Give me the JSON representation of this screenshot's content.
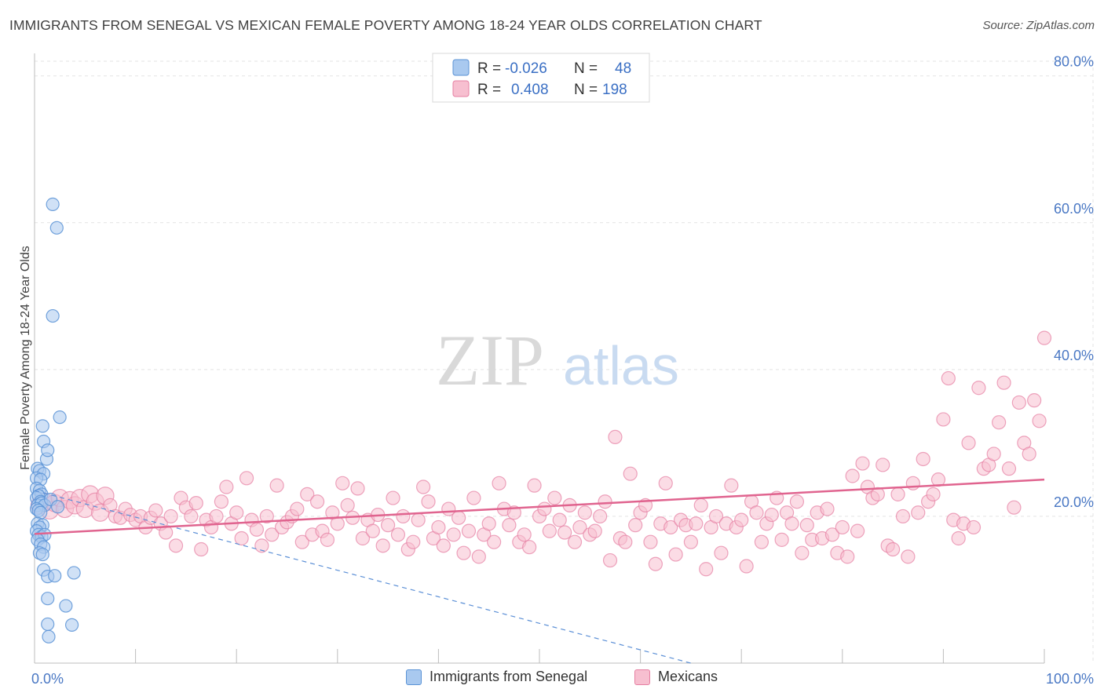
{
  "title": "IMMIGRANTS FROM SENEGAL VS MEXICAN FEMALE POVERTY AMONG 18-24 YEAR OLDS CORRELATION CHART",
  "source": "Source: ZipAtlas.com",
  "watermark": {
    "zip": "ZIP",
    "atlas": "atlas"
  },
  "colors": {
    "senegal_fill": "#a9c9ef",
    "senegal_stroke": "#5b93d6",
    "mexican_fill": "#f7bfd0",
    "mexican_stroke": "#e67fa2",
    "mexican_trend": "#e0648f",
    "senegal_trend": "#5b8fd6",
    "axis_text": "#4a78c4",
    "grid": "#e3e3e3"
  },
  "legend": {
    "row1": {
      "r_label": "R = ",
      "r_value": "-0.026",
      "n_label": "N = ",
      "n_value": "48"
    },
    "row2": {
      "r_label": "R = ",
      "r_value": "0.408",
      "n_label": "N = ",
      "n_value": "198"
    }
  },
  "chart_data": {
    "type": "scatter",
    "title": "IMMIGRANTS FROM SENEGAL VS MEXICAN FEMALE POVERTY AMONG 18-24 YEAR OLDS CORRELATION CHART",
    "xlabel": "",
    "ylabel": "Female Poverty Among 18-24 Year Olds",
    "xlim": [
      0,
      100
    ],
    "ylim": [
      0,
      82
    ],
    "x_tick_labels": [
      "0.0%",
      "100.0%"
    ],
    "y_ticks": [
      20,
      40,
      60,
      80
    ],
    "y_tick_labels": [
      "20.0%",
      "40.0%",
      "60.0%",
      "80.0%"
    ],
    "grid": true,
    "legend_position": "top-center",
    "series": [
      {
        "name": "Immigrants from Senegal",
        "R": -0.026,
        "N": 48,
        "trend": {
          "x0": 0,
          "y0": 23.5,
          "x1": 65,
          "y1": 0,
          "style": "dashed"
        },
        "points": [
          [
            1.8,
            62.5
          ],
          [
            2.2,
            59.3
          ],
          [
            1.8,
            47.3
          ],
          [
            2.5,
            33.5
          ],
          [
            0.8,
            32.3
          ],
          [
            0.9,
            30.2
          ],
          [
            1.2,
            27.8
          ],
          [
            1.3,
            29.0
          ],
          [
            0.3,
            26.5
          ],
          [
            0.5,
            26.2
          ],
          [
            0.9,
            25.8
          ],
          [
            0.2,
            25.2
          ],
          [
            0.6,
            25.0
          ],
          [
            0.2,
            23.8
          ],
          [
            0.5,
            23.5
          ],
          [
            0.7,
            23.0
          ],
          [
            0.2,
            22.5
          ],
          [
            0.4,
            22.8
          ],
          [
            0.6,
            22.0
          ],
          [
            0.3,
            21.5
          ],
          [
            0.7,
            21.8
          ],
          [
            1.0,
            21.5
          ],
          [
            0.2,
            21.0
          ],
          [
            0.4,
            20.8
          ],
          [
            0.6,
            20.5
          ],
          [
            0.3,
            19.0
          ],
          [
            0.8,
            18.8
          ],
          [
            0.5,
            18.5
          ],
          [
            0.2,
            18.0
          ],
          [
            0.4,
            17.5
          ],
          [
            0.7,
            17.2
          ],
          [
            1.0,
            17.5
          ],
          [
            0.3,
            16.8
          ],
          [
            0.6,
            16.2
          ],
          [
            0.9,
            15.8
          ],
          [
            0.5,
            15.0
          ],
          [
            0.8,
            14.8
          ],
          [
            0.9,
            12.7
          ],
          [
            1.3,
            11.8
          ],
          [
            2.0,
            11.9
          ],
          [
            3.9,
            12.3
          ],
          [
            1.3,
            8.8
          ],
          [
            3.1,
            7.8
          ],
          [
            1.3,
            5.3
          ],
          [
            3.7,
            5.2
          ],
          [
            1.4,
            3.6
          ],
          [
            1.6,
            22.3
          ],
          [
            2.3,
            21.3
          ]
        ]
      },
      {
        "name": "Mexicans",
        "R": 0.408,
        "N": 198,
        "trend": {
          "x0": 0,
          "y0": 17.6,
          "x1": 100,
          "y1": 25.0,
          "style": "solid"
        },
        "points": [
          [
            0.5,
            21.5
          ],
          [
            1.0,
            22.0
          ],
          [
            1.5,
            20.8
          ],
          [
            2.0,
            21.8
          ],
          [
            2.5,
            22.5
          ],
          [
            3.0,
            21.0
          ],
          [
            3.5,
            22.2
          ],
          [
            4.0,
            21.5
          ],
          [
            4.5,
            22.5
          ],
          [
            5.0,
            21.0
          ],
          [
            5.5,
            23.0
          ],
          [
            6.0,
            22.0
          ],
          [
            6.5,
            20.5
          ],
          [
            7.0,
            22.8
          ],
          [
            7.5,
            21.5
          ],
          [
            8.0,
            20.0
          ],
          [
            8.5,
            19.8
          ],
          [
            9.0,
            21.0
          ],
          [
            9.5,
            20.2
          ],
          [
            10.0,
            19.5
          ],
          [
            10.5,
            20.0
          ],
          [
            11.0,
            18.5
          ],
          [
            11.5,
            19.8
          ],
          [
            12.0,
            20.8
          ],
          [
            12.5,
            19.0
          ],
          [
            13.0,
            17.8
          ],
          [
            13.5,
            20.0
          ],
          [
            14.0,
            16.0
          ],
          [
            14.5,
            22.5
          ],
          [
            15.0,
            21.2
          ],
          [
            15.5,
            20.0
          ],
          [
            16.0,
            21.8
          ],
          [
            16.5,
            15.5
          ],
          [
            17.0,
            19.5
          ],
          [
            17.5,
            18.5
          ],
          [
            18.0,
            20.0
          ],
          [
            18.5,
            22.0
          ],
          [
            19.0,
            24.0
          ],
          [
            19.5,
            19.0
          ],
          [
            20.0,
            20.5
          ],
          [
            20.5,
            17.0
          ],
          [
            21.0,
            25.2
          ],
          [
            21.5,
            19.5
          ],
          [
            22.0,
            18.2
          ],
          [
            22.5,
            16.0
          ],
          [
            23.0,
            20.0
          ],
          [
            23.5,
            17.5
          ],
          [
            24.0,
            24.2
          ],
          [
            24.5,
            18.5
          ],
          [
            25.0,
            19.2
          ],
          [
            25.5,
            20.0
          ],
          [
            26.0,
            21.0
          ],
          [
            26.5,
            16.5
          ],
          [
            27.0,
            23.0
          ],
          [
            27.5,
            17.5
          ],
          [
            28.0,
            22.0
          ],
          [
            28.5,
            18.0
          ],
          [
            29.0,
            16.8
          ],
          [
            29.5,
            20.5
          ],
          [
            30.0,
            19.0
          ],
          [
            30.5,
            24.5
          ],
          [
            31.0,
            21.5
          ],
          [
            31.5,
            19.8
          ],
          [
            32.0,
            23.8
          ],
          [
            32.5,
            17.0
          ],
          [
            33.0,
            19.5
          ],
          [
            33.5,
            18.0
          ],
          [
            34.0,
            20.2
          ],
          [
            34.5,
            16.0
          ],
          [
            35.0,
            18.8
          ],
          [
            35.5,
            22.5
          ],
          [
            36.0,
            17.5
          ],
          [
            36.5,
            20.0
          ],
          [
            37.0,
            15.5
          ],
          [
            37.5,
            16.5
          ],
          [
            38.0,
            19.5
          ],
          [
            38.5,
            24.0
          ],
          [
            39.0,
            22.0
          ],
          [
            39.5,
            17.0
          ],
          [
            40.0,
            18.5
          ],
          [
            40.5,
            16.0
          ],
          [
            41.0,
            21.0
          ],
          [
            41.5,
            17.5
          ],
          [
            42.0,
            19.8
          ],
          [
            42.5,
            15.0
          ],
          [
            43.0,
            18.0
          ],
          [
            43.5,
            22.5
          ],
          [
            44.0,
            14.5
          ],
          [
            44.5,
            17.5
          ],
          [
            45.0,
            19.0
          ],
          [
            45.5,
            16.5
          ],
          [
            46.0,
            24.5
          ],
          [
            46.5,
            21.0
          ],
          [
            47.0,
            18.8
          ],
          [
            47.5,
            20.5
          ],
          [
            48.0,
            16.5
          ],
          [
            48.5,
            17.5
          ],
          [
            49.0,
            15.8
          ],
          [
            49.5,
            24.2
          ],
          [
            50.0,
            20.0
          ],
          [
            50.5,
            21.0
          ],
          [
            51.0,
            18.0
          ],
          [
            51.5,
            22.5
          ],
          [
            52.0,
            19.5
          ],
          [
            52.5,
            17.8
          ],
          [
            53.0,
            21.5
          ],
          [
            53.5,
            16.5
          ],
          [
            54.0,
            18.5
          ],
          [
            54.5,
            20.5
          ],
          [
            55.0,
            17.5
          ],
          [
            55.5,
            18.0
          ],
          [
            56.0,
            20.0
          ],
          [
            56.5,
            22.0
          ],
          [
            57.0,
            14.0
          ],
          [
            57.5,
            30.8
          ],
          [
            58.0,
            17.0
          ],
          [
            58.5,
            16.5
          ],
          [
            59.0,
            25.8
          ],
          [
            59.5,
            18.8
          ],
          [
            60.0,
            20.5
          ],
          [
            60.5,
            21.5
          ],
          [
            61.0,
            16.5
          ],
          [
            61.5,
            13.5
          ],
          [
            62.0,
            19.0
          ],
          [
            62.5,
            24.5
          ],
          [
            63.0,
            18.5
          ],
          [
            63.5,
            14.8
          ],
          [
            64.0,
            19.5
          ],
          [
            64.5,
            18.8
          ],
          [
            65.0,
            16.5
          ],
          [
            65.5,
            19.0
          ],
          [
            66.0,
            21.5
          ],
          [
            66.5,
            12.8
          ],
          [
            67.0,
            18.5
          ],
          [
            67.5,
            20.0
          ],
          [
            68.0,
            15.0
          ],
          [
            68.5,
            19.0
          ],
          [
            69.0,
            24.2
          ],
          [
            69.5,
            18.5
          ],
          [
            70.0,
            19.5
          ],
          [
            70.5,
            13.2
          ],
          [
            71.0,
            22.0
          ],
          [
            71.5,
            20.5
          ],
          [
            72.0,
            16.5
          ],
          [
            72.5,
            19.0
          ],
          [
            73.0,
            20.2
          ],
          [
            73.5,
            22.5
          ],
          [
            74.0,
            16.8
          ],
          [
            74.5,
            20.5
          ],
          [
            75.0,
            19.0
          ],
          [
            75.5,
            22.0
          ],
          [
            76.0,
            15.0
          ],
          [
            76.5,
            18.8
          ],
          [
            77.0,
            16.8
          ],
          [
            77.5,
            20.5
          ],
          [
            78.0,
            17.0
          ],
          [
            78.5,
            21.0
          ],
          [
            79.0,
            17.5
          ],
          [
            79.5,
            15.0
          ],
          [
            80.0,
            18.5
          ],
          [
            80.5,
            14.5
          ],
          [
            81.0,
            25.5
          ],
          [
            81.5,
            18.0
          ],
          [
            82.0,
            27.2
          ],
          [
            82.5,
            24.0
          ],
          [
            83.0,
            22.5
          ],
          [
            83.5,
            23.0
          ],
          [
            84.0,
            27.0
          ],
          [
            84.5,
            16.0
          ],
          [
            85.0,
            15.5
          ],
          [
            85.5,
            23.0
          ],
          [
            86.0,
            20.0
          ],
          [
            86.5,
            14.5
          ],
          [
            87.0,
            24.5
          ],
          [
            87.5,
            20.5
          ],
          [
            88.0,
            27.8
          ],
          [
            88.5,
            22.0
          ],
          [
            89.0,
            23.0
          ],
          [
            89.5,
            25.0
          ],
          [
            90.0,
            33.2
          ],
          [
            90.5,
            38.8
          ],
          [
            91.0,
            19.5
          ],
          [
            91.5,
            17.0
          ],
          [
            92.0,
            19.0
          ],
          [
            92.5,
            30.0
          ],
          [
            93.0,
            18.5
          ],
          [
            93.5,
            37.5
          ],
          [
            94.0,
            26.5
          ],
          [
            94.5,
            27.0
          ],
          [
            95.0,
            28.5
          ],
          [
            95.5,
            32.8
          ],
          [
            96.0,
            38.2
          ],
          [
            96.5,
            26.5
          ],
          [
            97.0,
            21.2
          ],
          [
            97.5,
            35.5
          ],
          [
            98.0,
            30.0
          ],
          [
            98.5,
            28.5
          ],
          [
            99.0,
            35.8
          ],
          [
            99.5,
            33.0
          ],
          [
            100.0,
            44.3
          ]
        ]
      }
    ]
  }
}
